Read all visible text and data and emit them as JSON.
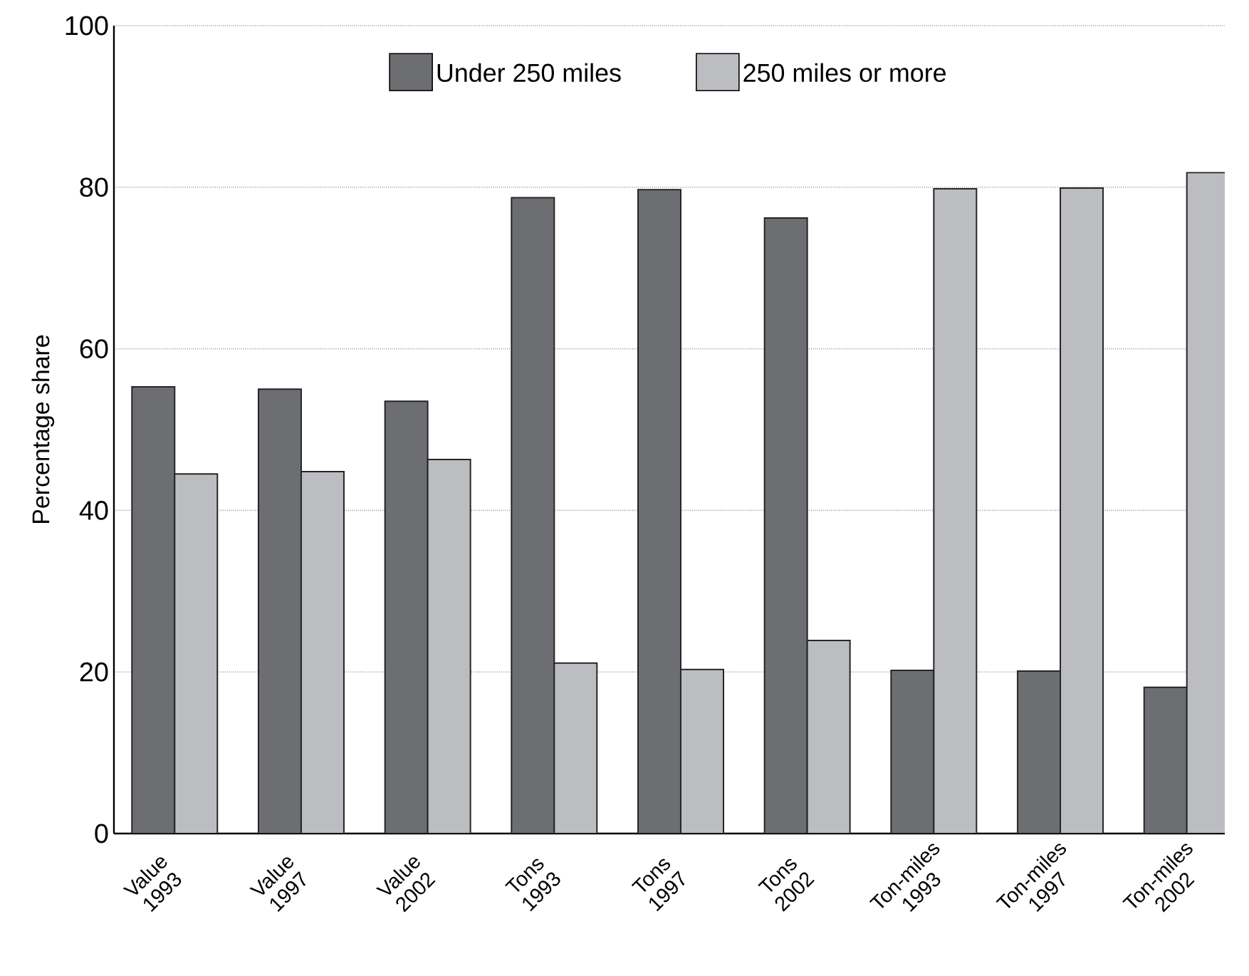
{
  "chart_data": {
    "type": "bar",
    "ylabel": "Percentage share",
    "categories": [
      "Value 1993",
      "Value 1997",
      "Value 2002",
      "Tons 1993",
      "Tons 1997",
      "Tons 2002",
      "Ton-miles 1993",
      "Ton-miles 1997",
      "Ton-miles 2002"
    ],
    "series": [
      {
        "name": "Under 250 miles",
        "color": "#6d6e71",
        "values": [
          55.3,
          55.0,
          53.5,
          78.7,
          79.7,
          76.2,
          20.2,
          20.1,
          18.1
        ]
      },
      {
        "name": "250 miles or more",
        "color": "#bcbdc0",
        "values": [
          44.5,
          44.8,
          46.3,
          21.1,
          20.3,
          23.9,
          79.8,
          79.9,
          81.8
        ]
      }
    ],
    "ylim": [
      0,
      100
    ],
    "yticks": [
      0,
      20,
      40,
      60,
      80,
      100
    ],
    "grid": "y",
    "legend": "top"
  }
}
